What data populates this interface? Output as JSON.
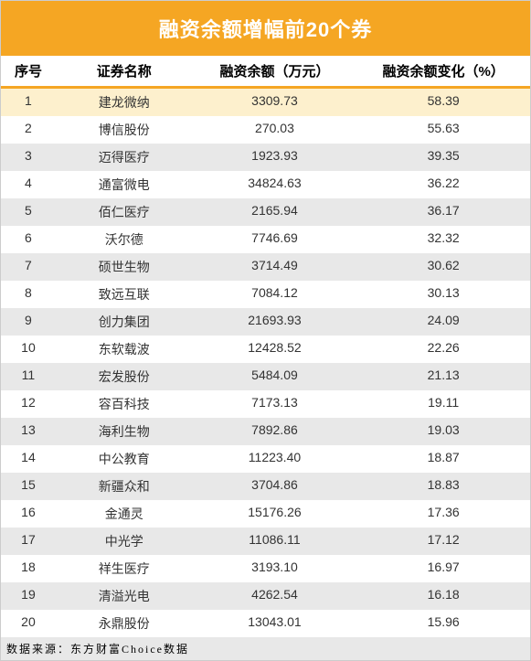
{
  "title": "融资余额增幅前20个券",
  "headers": {
    "col1": "序号",
    "col2": "证券名称",
    "col3": "融资余额（万元）",
    "col4": "融资余额变化（%）"
  },
  "footer": "数据来源：东方财富Choice数据",
  "watermark": "东方财富Choice数据",
  "colors": {
    "header_bg": "#f5a623",
    "header_text": "#ffffff",
    "border_accent": "#f5a623",
    "row_highlight": "#fdf0cd",
    "row_even": "#e8e8e8",
    "row_odd": "#ffffff",
    "text": "#333333",
    "footer_bg": "#e8e8e8"
  },
  "rows": [
    {
      "n": "1",
      "name": "建龙微纳",
      "bal": "3309.73",
      "chg": "58.39",
      "hl": true
    },
    {
      "n": "2",
      "name": "博信股份",
      "bal": "270.03",
      "chg": "55.63"
    },
    {
      "n": "3",
      "name": "迈得医疗",
      "bal": "1923.93",
      "chg": "39.35"
    },
    {
      "n": "4",
      "name": "通富微电",
      "bal": "34824.63",
      "chg": "36.22"
    },
    {
      "n": "5",
      "name": "佰仁医疗",
      "bal": "2165.94",
      "chg": "36.17"
    },
    {
      "n": "6",
      "name": "沃尔德",
      "bal": "7746.69",
      "chg": "32.32"
    },
    {
      "n": "7",
      "name": "硕世生物",
      "bal": "3714.49",
      "chg": "30.62"
    },
    {
      "n": "8",
      "name": "致远互联",
      "bal": "7084.12",
      "chg": "30.13"
    },
    {
      "n": "9",
      "name": "创力集团",
      "bal": "21693.93",
      "chg": "24.09"
    },
    {
      "n": "10",
      "name": "东软载波",
      "bal": "12428.52",
      "chg": "22.26"
    },
    {
      "n": "11",
      "name": "宏发股份",
      "bal": "5484.09",
      "chg": "21.13"
    },
    {
      "n": "12",
      "name": "容百科技",
      "bal": "7173.13",
      "chg": "19.11"
    },
    {
      "n": "13",
      "name": "海利生物",
      "bal": "7892.86",
      "chg": "19.03"
    },
    {
      "n": "14",
      "name": "中公教育",
      "bal": "11223.40",
      "chg": "18.87"
    },
    {
      "n": "15",
      "name": "新疆众和",
      "bal": "3704.86",
      "chg": "18.83"
    },
    {
      "n": "16",
      "name": "金通灵",
      "bal": "15176.26",
      "chg": "17.36"
    },
    {
      "n": "17",
      "name": "中光学",
      "bal": "11086.11",
      "chg": "17.12"
    },
    {
      "n": "18",
      "name": "祥生医疗",
      "bal": "3193.10",
      "chg": "16.97"
    },
    {
      "n": "19",
      "name": "清溢光电",
      "bal": "4262.54",
      "chg": "16.18"
    },
    {
      "n": "20",
      "name": "永鼎股份",
      "bal": "13043.01",
      "chg": "15.96"
    }
  ]
}
